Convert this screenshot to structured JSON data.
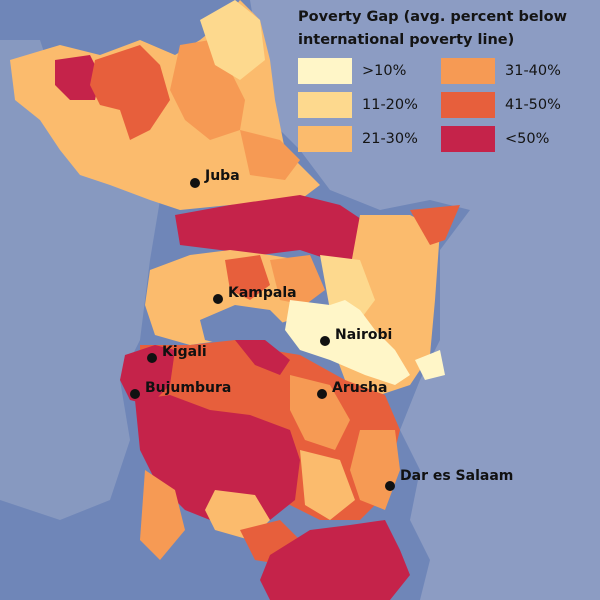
{
  "legend": {
    "title_line1": "Poverty Gap (avg. percent below",
    "title_line2": "international poverty line)",
    "items": [
      {
        "label": ">10%",
        "color": "#fff6c8"
      },
      {
        "label": "11-20%",
        "color": "#fdd98e"
      },
      {
        "label": "21-30%",
        "color": "#fbbb6d"
      },
      {
        "label": "31-40%",
        "color": "#f69a54"
      },
      {
        "label": "41-50%",
        "color": "#e75f3c"
      },
      {
        "label": "<50%",
        "color": "#c5234a"
      }
    ]
  },
  "cities": [
    {
      "name": "Juba"
    },
    {
      "name": "Kampala"
    },
    {
      "name": "Nairobi"
    },
    {
      "name": "Kigali"
    },
    {
      "name": "Bujumbura"
    },
    {
      "name": "Arusha"
    },
    {
      "name": "Dar es Salaam"
    }
  ],
  "colors": {
    "water": "#6f86b8",
    "land": "#8a9bc2",
    "city_dot": "#111111"
  }
}
